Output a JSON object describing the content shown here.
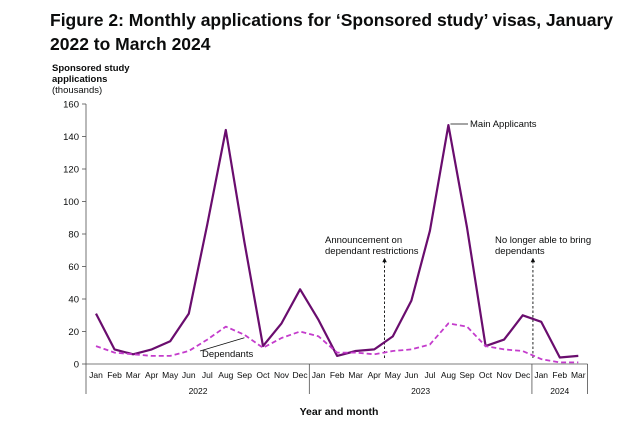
{
  "title": "Figure 2: Monthly applications for ‘Sponsored study’ visas, January 2022 to March 2024",
  "chart_data": {
    "type": "line",
    "title": "Figure 2: Monthly applications for ‘Sponsored study’ visas, January 2022 to March 2024",
    "ylabel_lines": [
      "Sponsored study",
      "applications",
      "(thousands)"
    ],
    "xlabel": "Year and month",
    "ylim": [
      0,
      160
    ],
    "yticks": [
      0,
      20,
      40,
      60,
      80,
      100,
      120,
      140,
      160
    ],
    "categories": [
      "Jan",
      "Feb",
      "Mar",
      "Apr",
      "May",
      "Jun",
      "Jul",
      "Aug",
      "Sep",
      "Oct",
      "Nov",
      "Dec",
      "Jan",
      "Feb",
      "Mar",
      "Apr",
      "May",
      "Jun",
      "Jul",
      "Aug",
      "Sep",
      "Oct",
      "Nov",
      "Dec",
      "Jan",
      "Feb",
      "Mar"
    ],
    "years": [
      {
        "label": "2022",
        "start": 0,
        "end": 11
      },
      {
        "label": "2023",
        "start": 12,
        "end": 23
      },
      {
        "label": "2024",
        "start": 24,
        "end": 26
      }
    ],
    "series": [
      {
        "name": "Main Applicants",
        "color": "#6a0d6e",
        "style": "solid",
        "values": [
          31,
          9,
          6,
          9,
          14,
          31,
          86,
          144,
          75,
          11,
          25,
          46,
          27,
          5,
          8,
          9,
          17,
          39,
          82,
          147,
          84,
          11,
          15,
          30,
          26,
          4,
          5
        ]
      },
      {
        "name": "Dependants",
        "color": "#c43ccc",
        "style": "dashed",
        "values": [
          11,
          7,
          6,
          5,
          5,
          8,
          15,
          23,
          18,
          10,
          16,
          20,
          17,
          7,
          7,
          6,
          8,
          9,
          12,
          25,
          23,
          11,
          9,
          8,
          3,
          1,
          1
        ]
      }
    ],
    "series_labels": [
      {
        "series": "Main Applicants",
        "text": "Main Applicants"
      },
      {
        "series": "Dependants",
        "text": "Dependants"
      }
    ],
    "annotations": [
      {
        "lines": [
          "Announcement on",
          "dependant restrictions"
        ],
        "at_index": 16
      },
      {
        "lines": [
          "No longer able to bring",
          "dependants"
        ],
        "at_index": 24
      }
    ]
  }
}
